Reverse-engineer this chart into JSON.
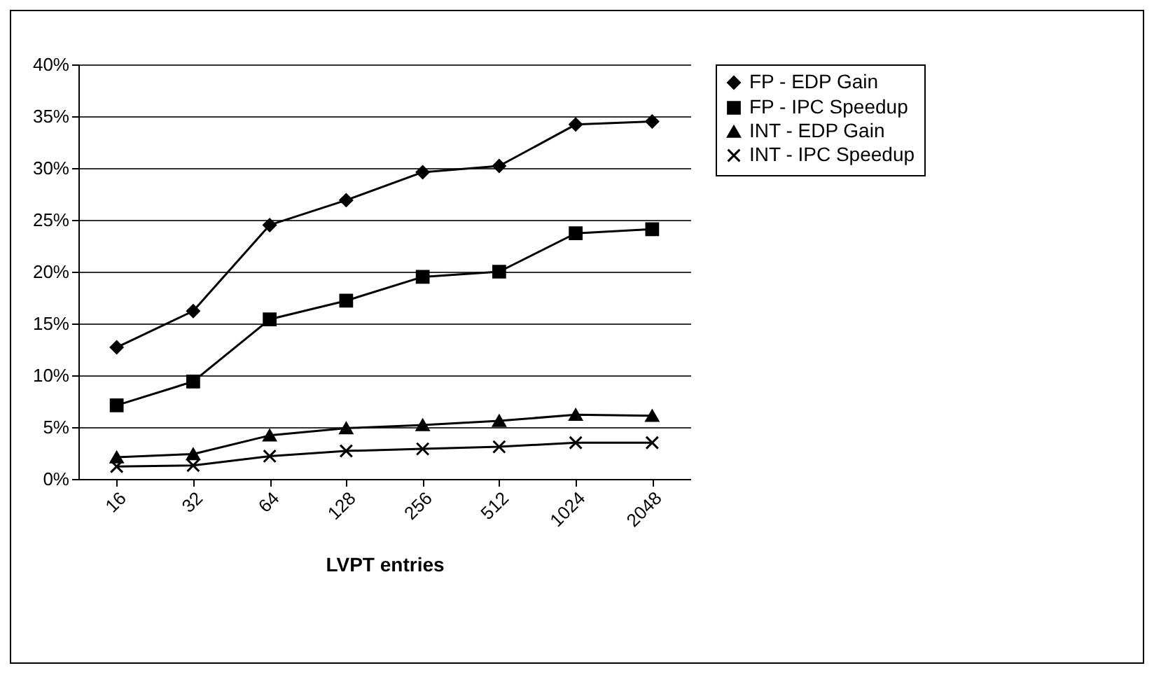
{
  "chart_data": {
    "type": "line",
    "xlabel": "LVPT entries",
    "categories": [
      "16",
      "32",
      "64",
      "128",
      "256",
      "512",
      "1024",
      "2048"
    ],
    "series": [
      {
        "name": "FP - EDP Gain",
        "color": "#000000",
        "marker": "diamond",
        "values": [
          12.7,
          16.2,
          24.5,
          26.9,
          29.6,
          30.2,
          34.2,
          34.5
        ]
      },
      {
        "name": "FP - IPC Speedup",
        "color": "#000000",
        "marker": "square",
        "values": [
          7.1,
          9.4,
          15.4,
          17.2,
          19.5,
          20.0,
          23.7,
          24.1
        ]
      },
      {
        "name": "INT - EDP Gain",
        "color": "#000000",
        "marker": "triangle",
        "values": [
          2.1,
          2.4,
          4.2,
          4.9,
          5.2,
          5.6,
          6.2,
          6.1
        ]
      },
      {
        "name": "INT - IPC Speedup",
        "color": "#000000",
        "marker": "cross",
        "values": [
          1.2,
          1.3,
          2.2,
          2.7,
          2.9,
          3.1,
          3.5,
          3.5
        ]
      }
    ],
    "ylim": [
      0,
      40
    ],
    "yticks": [
      {
        "value": 0,
        "label": "0%"
      },
      {
        "value": 5,
        "label": "5%"
      },
      {
        "value": 10,
        "label": "10%"
      },
      {
        "value": 15,
        "label": "15%"
      },
      {
        "value": 20,
        "label": "20%"
      },
      {
        "value": 25,
        "label": "25%"
      },
      {
        "value": 30,
        "label": "30%"
      },
      {
        "value": 35,
        "label": "35%"
      },
      {
        "value": 40,
        "label": "40%"
      }
    ],
    "grid": "y",
    "legend": "right",
    "line_style": "solid"
  }
}
